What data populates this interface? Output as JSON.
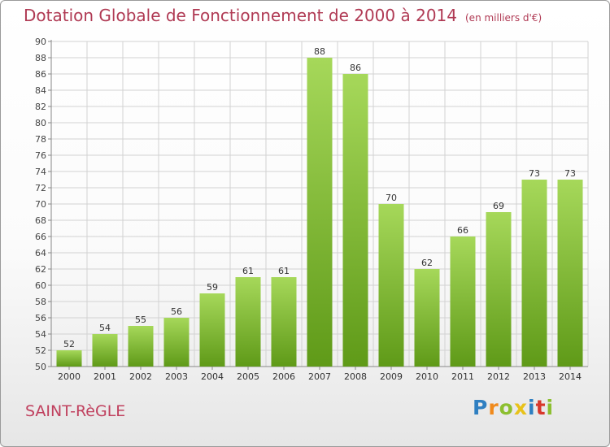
{
  "header": {
    "title": "Dotation Globale de Fonctionnement de 2000 à 2014",
    "unit": "(en milliers d'€)"
  },
  "footer": {
    "commune": "SAINT-RèGLE",
    "logo_text": "Proxiti",
    "logo_colors": [
      "#2f7fc1",
      "#f08a1c",
      "#8cbf2f",
      "#e8c21a",
      "#2f7fc1",
      "#d8382c",
      "#8cbf2f"
    ]
  },
  "colors": {
    "title": "#b03a54",
    "bar_light": "#a6d85a",
    "bar_dark": "#5f9a18",
    "grid": "#d2d2d2"
  },
  "chart_data": {
    "type": "bar",
    "title": "Dotation Globale de Fonctionnement de 2000 à 2014",
    "subtitle": "(en milliers d'€)",
    "categories": [
      "2000",
      "2001",
      "2002",
      "2003",
      "2004",
      "2005",
      "2006",
      "2007",
      "2008",
      "2009",
      "2010",
      "2011",
      "2012",
      "2013",
      "2014"
    ],
    "values": [
      52,
      54,
      55,
      56,
      59,
      61,
      61,
      88,
      86,
      70,
      62,
      66,
      69,
      73,
      73
    ],
    "ylim": [
      50,
      90
    ],
    "ytick_step": 2,
    "xlabel": "",
    "ylabel": "",
    "grid": true,
    "legend": "none"
  }
}
